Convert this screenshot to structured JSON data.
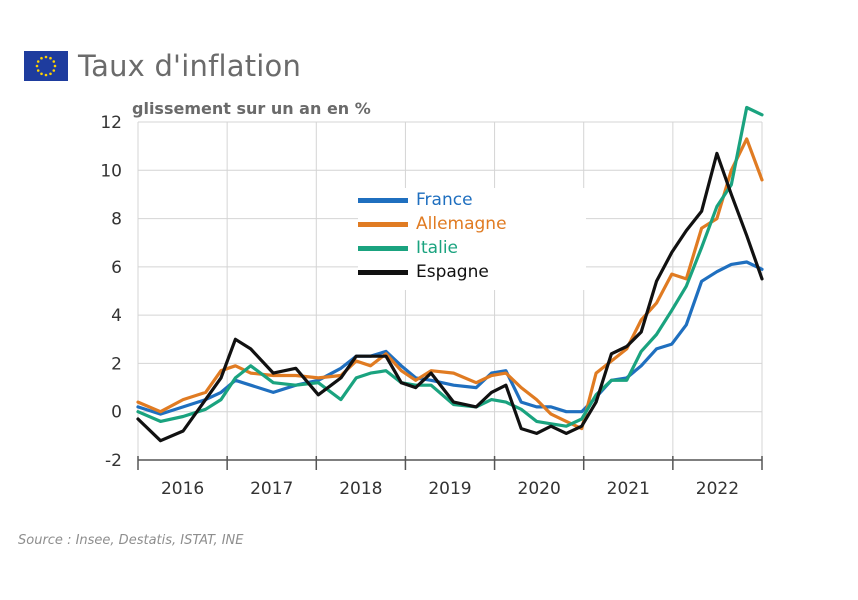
{
  "title": "Taux d'inflation",
  "source": "Source : Insee, Destatis, ISTAT, INE",
  "chart_data": {
    "type": "line",
    "title": "Taux d'inflation",
    "ylabel": "glissement sur un an en %",
    "ylim": [
      -2,
      12
    ],
    "yticks": [
      "12",
      "10",
      "8",
      "6",
      "4",
      "2",
      "0",
      "-2"
    ],
    "categories": [
      "2016",
      "2017",
      "2018",
      "2019",
      "2020",
      "2021",
      "2022"
    ],
    "xlim": [
      2016,
      2022.92
    ],
    "series": [
      {
        "name": "France",
        "color": "#1f6fbf",
        "x": [
          2016.0,
          2016.25,
          2016.5,
          2016.75,
          2016.92,
          2017.08,
          2017.25,
          2017.5,
          2017.75,
          2018.0,
          2018.25,
          2018.42,
          2018.58,
          2018.75,
          2018.92,
          2019.08,
          2019.25,
          2019.5,
          2019.75,
          2019.92,
          2020.08,
          2020.25,
          2020.42,
          2020.58,
          2020.75,
          2020.92,
          2021.08,
          2021.25,
          2021.42,
          2021.58,
          2021.75,
          2021.92,
          2022.08,
          2022.25,
          2022.42,
          2022.58,
          2022.75,
          2022.92
        ],
        "values": [
          0.2,
          -0.1,
          0.2,
          0.5,
          0.8,
          1.3,
          1.1,
          0.8,
          1.1,
          1.3,
          1.8,
          2.3,
          2.3,
          2.5,
          1.9,
          1.4,
          1.3,
          1.1,
          1.0,
          1.6,
          1.7,
          0.4,
          0.2,
          0.2,
          0.0,
          0.0,
          0.6,
          1.3,
          1.4,
          1.9,
          2.6,
          2.8,
          3.6,
          5.4,
          5.8,
          6.1,
          6.2,
          5.9
        ]
      },
      {
        "name": "Allemagne",
        "color": "#e07b22",
        "x": [
          2016.0,
          2016.25,
          2016.5,
          2016.75,
          2016.92,
          2017.08,
          2017.25,
          2017.5,
          2017.75,
          2018.0,
          2018.25,
          2018.42,
          2018.58,
          2018.75,
          2018.92,
          2019.08,
          2019.25,
          2019.5,
          2019.75,
          2019.92,
          2020.08,
          2020.25,
          2020.42,
          2020.58,
          2020.75,
          2020.92,
          2021.08,
          2021.25,
          2021.42,
          2021.58,
          2021.75,
          2021.92,
          2022.08,
          2022.25,
          2022.42,
          2022.58,
          2022.75,
          2022.92
        ],
        "values": [
          0.4,
          0.0,
          0.5,
          0.8,
          1.7,
          1.9,
          1.6,
          1.5,
          1.5,
          1.4,
          1.5,
          2.1,
          1.9,
          2.4,
          1.7,
          1.3,
          1.7,
          1.6,
          1.2,
          1.5,
          1.6,
          1.0,
          0.5,
          -0.1,
          -0.4,
          -0.7,
          1.6,
          2.1,
          2.6,
          3.8,
          4.5,
          5.7,
          5.5,
          7.6,
          8.0,
          10.0,
          11.3,
          9.6
        ]
      },
      {
        "name": "Italie",
        "color": "#1aa37f",
        "x": [
          2016.0,
          2016.25,
          2016.5,
          2016.75,
          2016.92,
          2017.08,
          2017.25,
          2017.5,
          2017.75,
          2018.0,
          2018.25,
          2018.42,
          2018.58,
          2018.75,
          2018.92,
          2019.08,
          2019.25,
          2019.5,
          2019.75,
          2019.92,
          2020.08,
          2020.25,
          2020.42,
          2020.58,
          2020.75,
          2020.92,
          2021.08,
          2021.25,
          2021.42,
          2021.58,
          2021.75,
          2021.92,
          2022.08,
          2022.25,
          2022.42,
          2022.58,
          2022.75,
          2022.92
        ],
        "values": [
          0.0,
          -0.4,
          -0.2,
          0.1,
          0.5,
          1.4,
          1.9,
          1.2,
          1.1,
          1.2,
          0.5,
          1.4,
          1.6,
          1.7,
          1.2,
          1.1,
          1.1,
          0.3,
          0.2,
          0.5,
          0.4,
          0.1,
          -0.4,
          -0.5,
          -0.6,
          -0.3,
          0.7,
          1.3,
          1.3,
          2.5,
          3.2,
          4.2,
          5.2,
          6.8,
          8.5,
          9.4,
          12.6,
          12.3
        ]
      },
      {
        "name": "Espagne",
        "color": "#111111",
        "x": [
          2016.0,
          2016.25,
          2016.5,
          2016.75,
          2016.92,
          2017.08,
          2017.25,
          2017.5,
          2017.75,
          2018.0,
          2018.25,
          2018.42,
          2018.58,
          2018.75,
          2018.92,
          2019.08,
          2019.25,
          2019.5,
          2019.75,
          2019.92,
          2020.08,
          2020.25,
          2020.42,
          2020.58,
          2020.75,
          2020.92,
          2021.08,
          2021.25,
          2021.42,
          2021.58,
          2021.75,
          2021.92,
          2022.08,
          2022.25,
          2022.42,
          2022.58,
          2022.75,
          2022.92
        ],
        "values": [
          -0.3,
          -1.2,
          -0.8,
          0.5,
          1.4,
          3.0,
          2.6,
          1.6,
          1.8,
          0.7,
          1.4,
          2.3,
          2.3,
          2.3,
          1.2,
          1.0,
          1.6,
          0.4,
          0.2,
          0.8,
          1.1,
          -0.7,
          -0.9,
          -0.6,
          -0.9,
          -0.6,
          0.4,
          2.4,
          2.7,
          3.3,
          5.4,
          6.6,
          7.5,
          8.3,
          10.7,
          9.0,
          7.3,
          5.5
        ]
      }
    ]
  }
}
